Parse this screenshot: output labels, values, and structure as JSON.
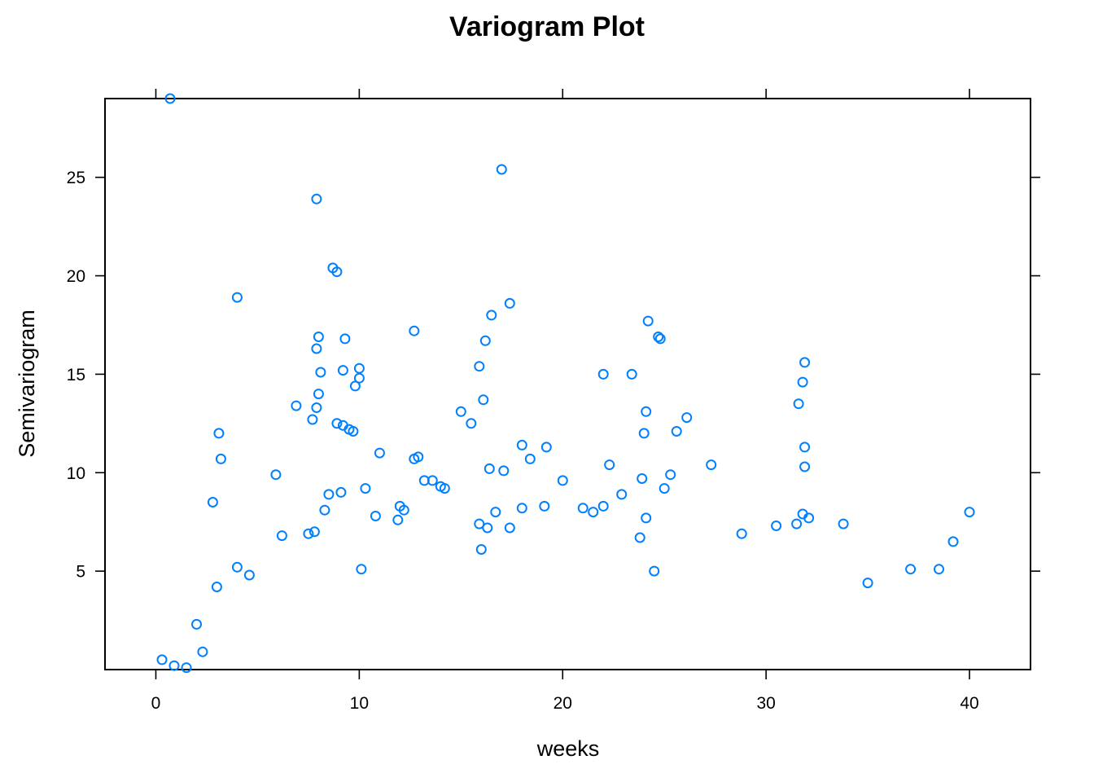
{
  "chart_data": {
    "type": "scatter",
    "title": "Variogram Plot",
    "xlabel": "weeks",
    "ylabel": "Semivariogram",
    "xlim": [
      -2.5,
      43
    ],
    "ylim": [
      0,
      29
    ],
    "x_ticks": [
      0,
      10,
      20,
      30,
      40
    ],
    "y_ticks": [
      5,
      10,
      15,
      20,
      25
    ],
    "grid": false,
    "legend": "none",
    "marker": "open-circle",
    "color": "#0080ff",
    "series": [
      {
        "x": [
          0.7,
          17.0,
          7.9,
          8.7,
          8.9,
          4.0,
          17.4,
          16.5,
          24.2,
          24.7,
          24.8,
          12.7,
          8.0,
          9.3,
          7.9,
          16.2,
          8.1,
          9.2,
          10.0,
          10.0,
          31.9,
          22.0,
          23.4,
          15.9,
          9.8,
          31.8,
          8.0,
          26.1,
          7.9,
          6.9,
          24.1,
          15.0,
          31.6,
          16.1,
          12.7,
          15.5,
          8.9,
          9.2,
          9.5,
          9.7,
          24.0,
          3.1,
          3.2,
          7.7,
          25.6,
          31.9,
          19.2,
          18.0,
          11.0,
          18.4,
          12.9,
          16.4,
          22.3,
          27.3,
          31.9,
          10.3,
          20.0,
          23.9,
          17.1,
          5.9,
          2.8,
          12.0,
          22.9,
          14.0,
          9.1,
          13.6,
          25.0,
          25.3,
          35.0,
          22.0,
          21.0,
          18.0,
          19.1,
          12.2,
          28.8,
          31.5,
          24.1,
          21.5,
          30.5,
          17.4,
          33.8,
          39.2,
          40.0,
          8.5,
          10.8,
          6.2,
          8.3,
          11.9,
          16.7,
          15.9,
          14.2,
          13.2,
          4.0,
          4.6,
          3.0,
          2.0,
          0.3,
          0.9,
          1.5,
          2.3,
          7.5,
          7.8,
          10.1,
          16.0,
          16.3,
          23.8,
          24.5,
          31.8,
          32.1,
          37.1,
          38.5
        ],
        "y": [
          29.0,
          25.4,
          23.9,
          20.4,
          20.2,
          18.9,
          18.6,
          18.0,
          17.7,
          16.9,
          16.8,
          17.2,
          16.9,
          16.8,
          16.3,
          16.7,
          15.1,
          15.2,
          15.3,
          14.8,
          15.6,
          15.0,
          15.0,
          15.4,
          14.4,
          14.6,
          14.0,
          12.8,
          13.3,
          13.4,
          13.1,
          13.1,
          13.5,
          13.7,
          10.7,
          12.5,
          12.5,
          12.4,
          12.2,
          12.1,
          12.0,
          12.0,
          10.7,
          12.7,
          12.1,
          11.3,
          11.3,
          11.4,
          11.0,
          10.7,
          10.8,
          10.2,
          10.4,
          10.4,
          10.3,
          9.2,
          9.6,
          9.7,
          10.1,
          9.9,
          8.5,
          8.3,
          8.9,
          9.3,
          9.0,
          9.6,
          9.2,
          9.9,
          4.4,
          8.3,
          8.2,
          8.2,
          8.3,
          8.1,
          6.9,
          7.4,
          7.7,
          8.0,
          7.3,
          7.2,
          7.4,
          6.5,
          8.0,
          8.9,
          7.8,
          6.8,
          8.1,
          7.6,
          8.0,
          7.4,
          9.2,
          9.6,
          5.2,
          4.8,
          4.2,
          2.3,
          0.5,
          0.2,
          0.1,
          0.9,
          6.9,
          7.0,
          5.1,
          6.1,
          7.2,
          6.7,
          5.0,
          7.9,
          7.7,
          5.1,
          5.1
        ]
      }
    ]
  }
}
